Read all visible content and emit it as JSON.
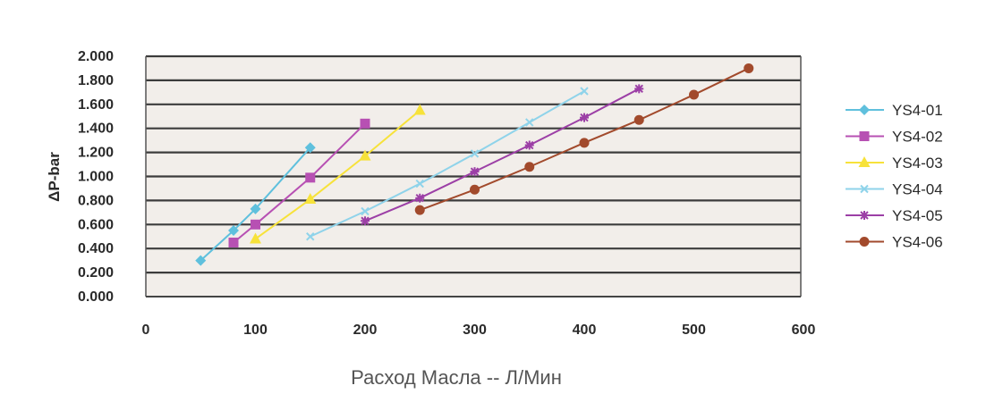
{
  "chart_data": {
    "type": "line",
    "title": "",
    "xlabel": "Расход Масла -- Л/Мин",
    "ylabel": "ΔP-bar",
    "xlim": [
      0,
      600
    ],
    "ylim": [
      0,
      2
    ],
    "x_ticks": [
      "0",
      "100",
      "200",
      "300",
      "400",
      "500",
      "600"
    ],
    "x_tick_values": [
      0,
      100,
      200,
      300,
      400,
      500,
      600
    ],
    "y_ticks": [
      "0.000",
      "0.200",
      "0.400",
      "0.600",
      "0.800",
      "1.000",
      "1.200",
      "1.400",
      "1.600",
      "1.800",
      "2.000"
    ],
    "y_tick_values": [
      0,
      0.2,
      0.4,
      0.6,
      0.8,
      1.0,
      1.2,
      1.4,
      1.6,
      1.8,
      2.0
    ],
    "grid": "horizontal",
    "plot_background": "#f2eeea",
    "legend_position": "right",
    "series": [
      {
        "name": "YS4-01",
        "color": "#5fc0dd",
        "marker": "diamond",
        "x": [
          50,
          80,
          100,
          150
        ],
        "y": [
          0.3,
          0.55,
          0.73,
          1.24
        ]
      },
      {
        "name": "YS4-02",
        "color": "#b750b3",
        "marker": "square",
        "x": [
          80,
          100,
          150,
          200
        ],
        "y": [
          0.45,
          0.6,
          0.99,
          1.44
        ]
      },
      {
        "name": "YS4-03",
        "color": "#f7e23a",
        "marker": "triangle",
        "x": [
          100,
          150,
          200,
          250
        ],
        "y": [
          0.48,
          0.81,
          1.17,
          1.55
        ]
      },
      {
        "name": "YS4-04",
        "color": "#8fd3ea",
        "marker": "cross",
        "x": [
          150,
          200,
          250,
          300,
          350,
          400
        ],
        "y": [
          0.5,
          0.71,
          0.94,
          1.19,
          1.45,
          1.71
        ]
      },
      {
        "name": "YS4-05",
        "color": "#9c3fa6",
        "marker": "star",
        "x": [
          200,
          250,
          300,
          350,
          400,
          450
        ],
        "y": [
          0.63,
          0.82,
          1.04,
          1.26,
          1.49,
          1.73
        ]
      },
      {
        "name": "YS4-06",
        "color": "#a24a2c",
        "marker": "circle",
        "x": [
          250,
          300,
          350,
          400,
          450,
          500,
          550
        ],
        "y": [
          0.72,
          0.89,
          1.08,
          1.28,
          1.47,
          1.68,
          1.9
        ]
      }
    ]
  }
}
